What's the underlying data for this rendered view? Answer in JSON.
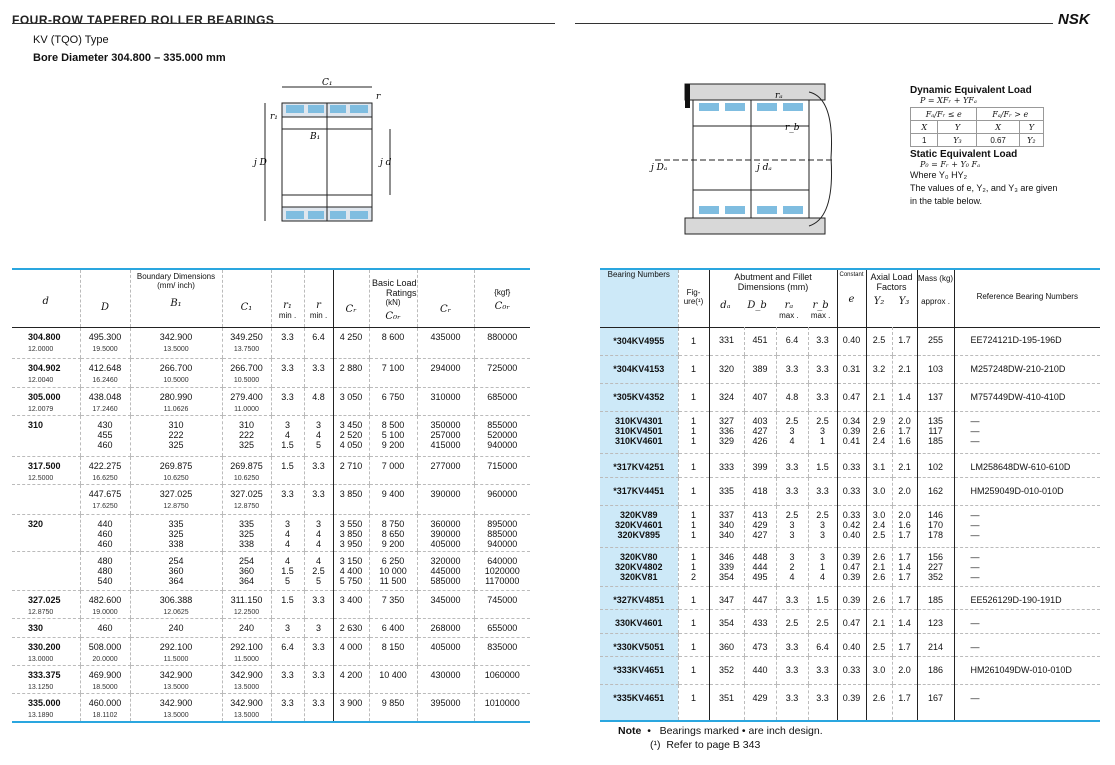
{
  "header": {
    "title": "FOUR-ROW TAPERED ROLLER BEARINGS",
    "type": "KV (TQO) Type",
    "bore": "Bore Diameter 304.800 – 335.000 mm",
    "logo": "NSK"
  },
  "figure_left": {
    "C1": "C₁",
    "r": "r",
    "r1": "r₁",
    "B1": "B₁",
    "D": "j D",
    "d": "j d"
  },
  "figure_right": {
    "ra": "rₐ",
    "rb": "r_b",
    "Da": "j Dₐ",
    "da": "j dₐ"
  },
  "formula": {
    "dynamic_title": "Dynamic Equivalent Load",
    "dynamic_eq": "P = XFᵣ + YFₐ",
    "cond1": "Fₐ/Fᵣ ≤ e",
    "cond2": "Fₐ/Fᵣ > e",
    "X": "X",
    "Y": "Y",
    "x1": "1",
    "y1": "Y₃",
    "x2": "0.67",
    "y2": "Y₂",
    "static_title": "Static Equivalent Load",
    "static_eq": "P₀ = Fᵣ + Y₀ Fₐ",
    "where": "Where Y₀ HY₂",
    "values_note": "The values of e, Y₂, and Y₃ are given in the table below."
  },
  "left_table": {
    "headers": {
      "boundary": "Boundary Dimensions",
      "units": "(mm/ inch)",
      "basic": "Basic Load Ratings",
      "kn": "(kN)",
      "kgf": "{kgf}",
      "d": "d",
      "D": "D",
      "B1": "B₁",
      "C1": "C₁",
      "r1": "r₁",
      "r": "r",
      "min": "min .",
      "Cr": "Cᵣ",
      "C0r": "C₀ᵣ",
      "Cr2": "Cᵣ",
      "C0r2": "C₀ᵣ"
    },
    "rows": [
      {
        "d": "304.800",
        "d_in": "12.0000",
        "D": [
          "495.300"
        ],
        "D_in": "19.5000",
        "B": [
          "342.900"
        ],
        "B_in": "13.5000",
        "C": [
          "349.250"
        ],
        "C_in": "13.7500",
        "r1": [
          "3.3"
        ],
        "r": [
          "6.4"
        ],
        "Cr": [
          "4 250"
        ],
        "C0r": [
          "8 600"
        ],
        "Crk": [
          "435000"
        ],
        "C0rk": [
          "880000"
        ]
      },
      {
        "d": "304.902",
        "d_in": "12.0040",
        "D": [
          "412.648"
        ],
        "D_in": "16.2460",
        "B": [
          "266.700"
        ],
        "B_in": "10.5000",
        "C": [
          "266.700"
        ],
        "C_in": "10.5000",
        "r1": [
          "3.3"
        ],
        "r": [
          "3.3"
        ],
        "Cr": [
          "2 880"
        ],
        "C0r": [
          "7 100"
        ],
        "Crk": [
          "294000"
        ],
        "C0rk": [
          "725000"
        ]
      },
      {
        "d": "305.000",
        "d_in": "12.0079",
        "D": [
          "438.048"
        ],
        "D_in": "17.2460",
        "B": [
          "280.990"
        ],
        "B_in": "11.0626",
        "C": [
          "279.400"
        ],
        "C_in": "11.0000",
        "r1": [
          "3.3"
        ],
        "r": [
          "4.8"
        ],
        "Cr": [
          "3 050"
        ],
        "C0r": [
          "6 750"
        ],
        "Crk": [
          "310000"
        ],
        "C0rk": [
          "685000"
        ]
      },
      {
        "d": "310",
        "D": [
          "430",
          "455",
          "460"
        ],
        "B": [
          "310",
          "222",
          "325"
        ],
        "C": [
          "310",
          "222",
          "325"
        ],
        "r1": [
          "3",
          "4",
          "1.5"
        ],
        "r": [
          "3",
          "4",
          "5"
        ],
        "Cr": [
          "3 450",
          "2 520",
          "4 050"
        ],
        "C0r": [
          "8 500",
          "5 100",
          "9 200"
        ],
        "Crk": [
          "350000",
          "257000",
          "415000"
        ],
        "C0rk": [
          "855000",
          "520000",
          "940000"
        ]
      },
      {
        "d": "317.500",
        "d_in": "12.5000",
        "D": [
          "422.275"
        ],
        "D_in": "16.6250",
        "B": [
          "269.875"
        ],
        "B_in": "10.6250",
        "C": [
          "269.875"
        ],
        "C_in": "10.6250",
        "r1": [
          "1.5"
        ],
        "r": [
          "3.3"
        ],
        "Cr": [
          "2 710"
        ],
        "C0r": [
          "7 000"
        ],
        "Crk": [
          "277000"
        ],
        "C0rk": [
          "715000"
        ]
      },
      {
        "d": "",
        "D": [
          "447.675"
        ],
        "D_in": "17.6250",
        "B": [
          "327.025"
        ],
        "B_in": "12.8750",
        "C": [
          "327.025"
        ],
        "C_in": "12.8750",
        "r1": [
          "3.3"
        ],
        "r": [
          "3.3"
        ],
        "Cr": [
          "3 850"
        ],
        "C0r": [
          "9 400"
        ],
        "Crk": [
          "390000"
        ],
        "C0rk": [
          "960000"
        ]
      },
      {
        "d": "320",
        "D": [
          "440",
          "460",
          "460"
        ],
        "B": [
          "335",
          "325",
          "338"
        ],
        "C": [
          "335",
          "325",
          "338"
        ],
        "r1": [
          "3",
          "4",
          "4"
        ],
        "r": [
          "3",
          "4",
          "4"
        ],
        "Cr": [
          "3 550",
          "3 850",
          "3 950"
        ],
        "C0r": [
          "8 750",
          "8 650",
          "9 200"
        ],
        "Crk": [
          "360000",
          "390000",
          "405000"
        ],
        "C0rk": [
          "895000",
          "885000",
          "940000"
        ]
      },
      {
        "d": "",
        "D": [
          "480",
          "480",
          "540"
        ],
        "B": [
          "254",
          "360",
          "364"
        ],
        "C": [
          "254",
          "360",
          "364"
        ],
        "r1": [
          "4",
          "1.5",
          "5"
        ],
        "r": [
          "4",
          "2.5",
          "5"
        ],
        "Cr": [
          "3 150",
          "4 400",
          "5 750"
        ],
        "C0r": [
          "6 250",
          "10 000",
          "11 500"
        ],
        "Crk": [
          "320000",
          "445000",
          "585000"
        ],
        "C0rk": [
          "640000",
          "1020000",
          "1170000"
        ]
      },
      {
        "d": "327.025",
        "d_in": "12.8750",
        "D": [
          "482.600"
        ],
        "D_in": "19.0000",
        "B": [
          "306.388"
        ],
        "B_in": "12.0625",
        "C": [
          "311.150"
        ],
        "C_in": "12.2500",
        "r1": [
          "1.5"
        ],
        "r": [
          "3.3"
        ],
        "Cr": [
          "3 400"
        ],
        "C0r": [
          "7 350"
        ],
        "Crk": [
          "345000"
        ],
        "C0rk": [
          "745000"
        ]
      },
      {
        "d": "330",
        "D": [
          "460"
        ],
        "B": [
          "240"
        ],
        "C": [
          "240"
        ],
        "r1": [
          "3"
        ],
        "r": [
          "3"
        ],
        "Cr": [
          "2 630"
        ],
        "C0r": [
          "6 400"
        ],
        "Crk": [
          "268000"
        ],
        "C0rk": [
          "655000"
        ]
      },
      {
        "d": "330.200",
        "d_in": "13.0000",
        "D": [
          "508.000"
        ],
        "D_in": "20.0000",
        "B": [
          "292.100"
        ],
        "B_in": "11.5000",
        "C": [
          "292.100"
        ],
        "C_in": "11.5000",
        "r1": [
          "6.4"
        ],
        "r": [
          "3.3"
        ],
        "Cr": [
          "4 000"
        ],
        "C0r": [
          "8 150"
        ],
        "Crk": [
          "405000"
        ],
        "C0rk": [
          "835000"
        ]
      },
      {
        "d": "333.375",
        "d_in": "13.1250",
        "D": [
          "469.900"
        ],
        "D_in": "18.5000",
        "B": [
          "342.900"
        ],
        "B_in": "13.5000",
        "C": [
          "342.900"
        ],
        "C_in": "13.5000",
        "r1": [
          "3.3"
        ],
        "r": [
          "3.3"
        ],
        "Cr": [
          "4 200"
        ],
        "C0r": [
          "10 400"
        ],
        "Crk": [
          "430000"
        ],
        "C0rk": [
          "1060000"
        ]
      },
      {
        "d": "335.000",
        "d_in": "13.1890",
        "D": [
          "460.000"
        ],
        "D_in": "18.1102",
        "B": [
          "342.900"
        ],
        "B_in": "13.5000",
        "C": [
          "342.900"
        ],
        "C_in": "13.5000",
        "r1": [
          "3.3"
        ],
        "r": [
          "3.3"
        ],
        "Cr": [
          "3 900"
        ],
        "C0r": [
          "9 850"
        ],
        "Crk": [
          "395000"
        ],
        "C0rk": [
          "1010000"
        ]
      }
    ]
  },
  "right_table": {
    "headers": {
      "bearing": "Bearing Numbers",
      "fig": "Fig-ure(¹)",
      "abut": "Abutment and Fillet Dimensions (mm)",
      "da": "dₐ",
      "Db": "D_b",
      "ra": "rₐ",
      "rb": "r_b",
      "max": "max .",
      "constant": "Constant",
      "e": "e",
      "axial": "Axial Load Factors",
      "Y2": "Y₂",
      "Y3": "Y₃",
      "mass": "Mass (kg)",
      "approx": "approx .",
      "ref": "Reference Bearing Numbers"
    },
    "rows": [
      {
        "bn": [
          "*304KV4955"
        ],
        "fig": [
          "1"
        ],
        "da": [
          "331"
        ],
        "Db": [
          "451"
        ],
        "ra": [
          "6.4"
        ],
        "rb": [
          "3.3"
        ],
        "e": [
          "0.40"
        ],
        "Y2": [
          "2.5"
        ],
        "Y3": [
          "1.7"
        ],
        "mass": [
          "255"
        ],
        "ref": [
          "EE724121D-195-196D"
        ]
      },
      {
        "bn": [
          "*304KV4153"
        ],
        "fig": [
          "1"
        ],
        "da": [
          "320"
        ],
        "Db": [
          "389"
        ],
        "ra": [
          "3.3"
        ],
        "rb": [
          "3.3"
        ],
        "e": [
          "0.31"
        ],
        "Y2": [
          "3.2"
        ],
        "Y3": [
          "2.1"
        ],
        "mass": [
          "103"
        ],
        "ref": [
          "M257248DW-210-210D"
        ]
      },
      {
        "bn": [
          "*305KV4352"
        ],
        "fig": [
          "1"
        ],
        "da": [
          "324"
        ],
        "Db": [
          "407"
        ],
        "ra": [
          "4.8"
        ],
        "rb": [
          "3.3"
        ],
        "e": [
          "0.47"
        ],
        "Y2": [
          "2.1"
        ],
        "Y3": [
          "1.4"
        ],
        "mass": [
          "137"
        ],
        "ref": [
          "M757449DW-410-410D"
        ]
      },
      {
        "bn": [
          "310KV4301",
          "310KV4501",
          "310KV4601"
        ],
        "fig": [
          "1",
          "1",
          "1"
        ],
        "da": [
          "327",
          "336",
          "329"
        ],
        "Db": [
          "403",
          "427",
          "426"
        ],
        "ra": [
          "2.5",
          "3",
          "4"
        ],
        "rb": [
          "2.5",
          "3",
          "1"
        ],
        "e": [
          "0.34",
          "0.39",
          "0.41"
        ],
        "Y2": [
          "2.9",
          "2.6",
          "2.4"
        ],
        "Y3": [
          "2.0",
          "1.7",
          "1.6"
        ],
        "mass": [
          "135",
          "117",
          "185"
        ],
        "ref": [
          "—",
          "—",
          "—"
        ]
      },
      {
        "bn": [
          "*317KV4251"
        ],
        "fig": [
          "1"
        ],
        "da": [
          "333"
        ],
        "Db": [
          "399"
        ],
        "ra": [
          "3.3"
        ],
        "rb": [
          "1.5"
        ],
        "e": [
          "0.33"
        ],
        "Y2": [
          "3.1"
        ],
        "Y3": [
          "2.1"
        ],
        "mass": [
          "102"
        ],
        "ref": [
          "LM258648DW-610-610D"
        ]
      },
      {
        "bn": [
          "*317KV4451"
        ],
        "fig": [
          "1"
        ],
        "da": [
          "335"
        ],
        "Db": [
          "418"
        ],
        "ra": [
          "3.3"
        ],
        "rb": [
          "3.3"
        ],
        "e": [
          "0.33"
        ],
        "Y2": [
          "3.0"
        ],
        "Y3": [
          "2.0"
        ],
        "mass": [
          "162"
        ],
        "ref": [
          "HM259049D-010-010D"
        ]
      },
      {
        "bn": [
          "320KV89",
          "320KV4601",
          "320KV895"
        ],
        "fig": [
          "1",
          "1",
          "1"
        ],
        "da": [
          "337",
          "340",
          "340"
        ],
        "Db": [
          "413",
          "429",
          "427"
        ],
        "ra": [
          "2.5",
          "3",
          "3"
        ],
        "rb": [
          "2.5",
          "3",
          "3"
        ],
        "e": [
          "0.33",
          "0.42",
          "0.40"
        ],
        "Y2": [
          "3.0",
          "2.4",
          "2.5"
        ],
        "Y3": [
          "2.0",
          "1.6",
          "1.7"
        ],
        "mass": [
          "146",
          "170",
          "178"
        ],
        "ref": [
          "—",
          "—",
          "—"
        ]
      },
      {
        "bn": [
          "320KV80",
          "320KV4802",
          "320KV81"
        ],
        "fig": [
          "1",
          "1",
          "2"
        ],
        "da": [
          "346",
          "339",
          "354"
        ],
        "Db": [
          "448",
          "444",
          "495"
        ],
        "ra": [
          "3",
          "2",
          "4"
        ],
        "rb": [
          "3",
          "1",
          "4"
        ],
        "e": [
          "0.39",
          "0.47",
          "0.39"
        ],
        "Y2": [
          "2.6",
          "2.1",
          "2.6"
        ],
        "Y3": [
          "1.7",
          "1.4",
          "1.7"
        ],
        "mass": [
          "156",
          "227",
          "352"
        ],
        "ref": [
          "—",
          "—",
          "—"
        ]
      },
      {
        "bn": [
          "*327KV4851"
        ],
        "fig": [
          "1"
        ],
        "da": [
          "347"
        ],
        "Db": [
          "447"
        ],
        "ra": [
          "3.3"
        ],
        "rb": [
          "1.5"
        ],
        "e": [
          "0.39"
        ],
        "Y2": [
          "2.6"
        ],
        "Y3": [
          "1.7"
        ],
        "mass": [
          "185"
        ],
        "ref": [
          "EE526129D-190-191D"
        ]
      },
      {
        "bn": [
          "330KV4601"
        ],
        "fig": [
          "1"
        ],
        "da": [
          "354"
        ],
        "Db": [
          "433"
        ],
        "ra": [
          "2.5"
        ],
        "rb": [
          "2.5"
        ],
        "e": [
          "0.47"
        ],
        "Y2": [
          "2.1"
        ],
        "Y3": [
          "1.4"
        ],
        "mass": [
          "123"
        ],
        "ref": [
          "—"
        ]
      },
      {
        "bn": [
          "*330KV5051"
        ],
        "fig": [
          "1"
        ],
        "da": [
          "360"
        ],
        "Db": [
          "473"
        ],
        "ra": [
          "3.3"
        ],
        "rb": [
          "6.4"
        ],
        "e": [
          "0.40"
        ],
        "Y2": [
          "2.5"
        ],
        "Y3": [
          "1.7"
        ],
        "mass": [
          "214"
        ],
        "ref": [
          "—"
        ]
      },
      {
        "bn": [
          "*333KV4651"
        ],
        "fig": [
          "1"
        ],
        "da": [
          "352"
        ],
        "Db": [
          "440"
        ],
        "ra": [
          "3.3"
        ],
        "rb": [
          "3.3"
        ],
        "e": [
          "0.33"
        ],
        "Y2": [
          "3.0"
        ],
        "Y3": [
          "2.0"
        ],
        "mass": [
          "186"
        ],
        "ref": [
          "HM261049DW-010-010D"
        ]
      },
      {
        "bn": [
          "*335KV4651"
        ],
        "fig": [
          "1"
        ],
        "da": [
          "351"
        ],
        "Db": [
          "429"
        ],
        "ra": [
          "3.3"
        ],
        "rb": [
          "3.3"
        ],
        "e": [
          "0.39"
        ],
        "Y2": [
          "2.6"
        ],
        "Y3": [
          "1.7"
        ],
        "mass": [
          "167"
        ],
        "ref": [
          "—"
        ]
      }
    ]
  },
  "note": {
    "label": "Note",
    "bullet": "•",
    "text1": "Bearings marked • are inch design.",
    "mark": "(¹)",
    "text2": "Refer to page B 343"
  }
}
